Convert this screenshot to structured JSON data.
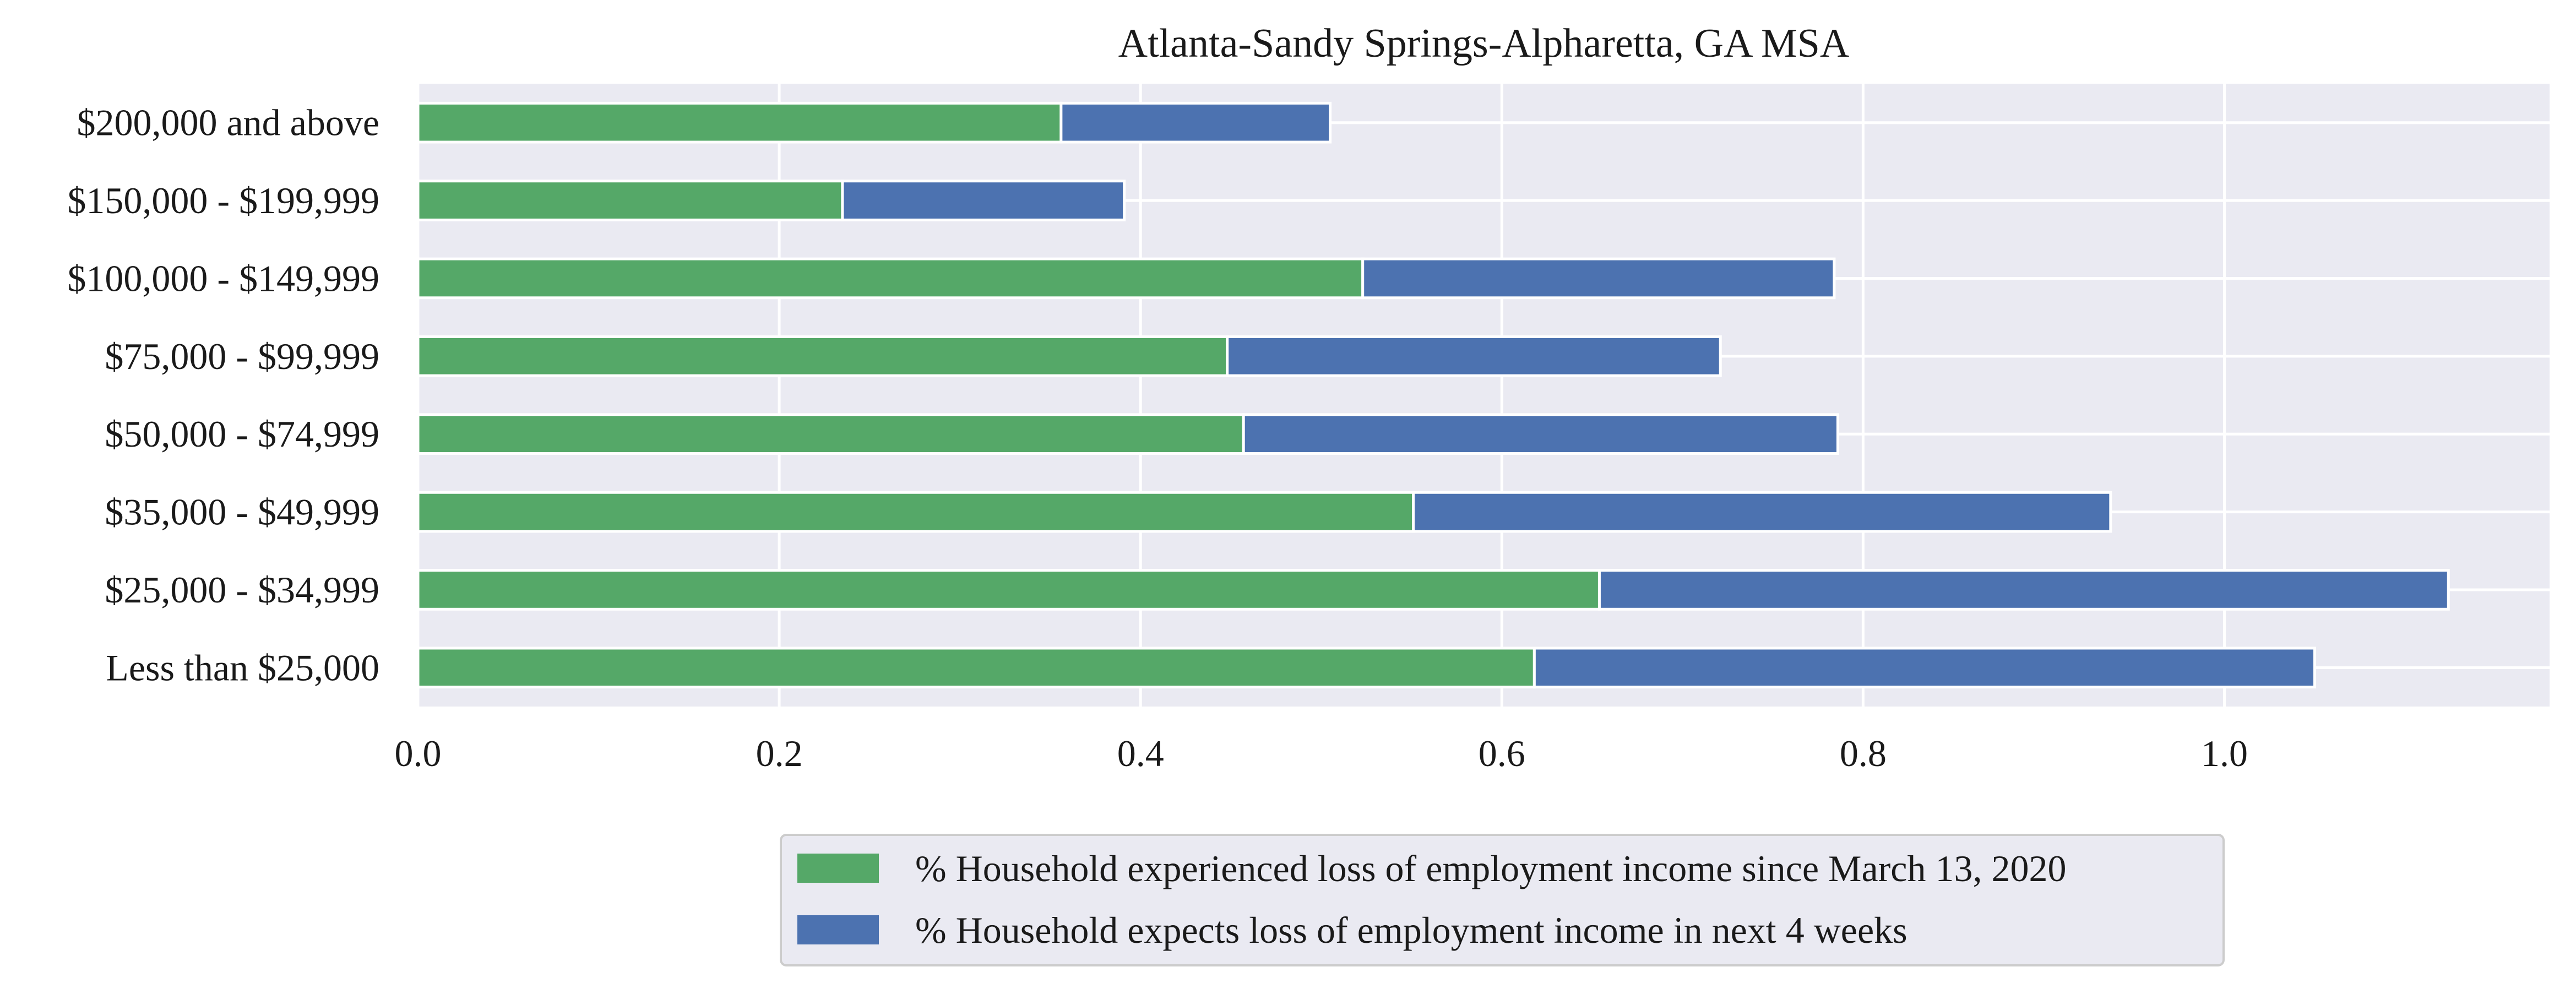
{
  "chart_data": {
    "type": "bar",
    "orientation": "horizontal",
    "stacked": true,
    "title": "Atlanta-Sandy Springs-Alpharetta, GA MSA",
    "xlabel": "",
    "ylabel": "",
    "categories": [
      "Less than $25,000",
      "$25,000 - $34,999",
      "$35,000 - $49,999",
      "$50,000 - $74,999",
      "$75,000 - $99,999",
      "$100,000 - $149,999",
      "$150,000 - $199,999",
      "$200,000 and above"
    ],
    "series": [
      {
        "name": "% Household experienced loss of employment income since March 13, 2020",
        "color": "#55a868",
        "values": [
          0.618,
          0.654,
          0.551,
          0.457,
          0.448,
          0.523,
          0.235,
          0.356
        ]
      },
      {
        "name": "% Household expects loss of employment income in next 4 weeks",
        "color": "#4c72b0",
        "values": [
          0.432,
          0.47,
          0.386,
          0.329,
          0.273,
          0.261,
          0.156,
          0.149
        ]
      }
    ],
    "xlim": [
      0.0,
      1.18
    ],
    "xticks": [
      0.0,
      0.2,
      0.4,
      0.6,
      0.8,
      1.0
    ],
    "xtick_labels": [
      "0.0",
      "0.2",
      "0.4",
      "0.6",
      "0.8",
      "1.0"
    ],
    "grid": true,
    "legend_position": "bottom-center",
    "plot_background": "#eaeaf2"
  }
}
